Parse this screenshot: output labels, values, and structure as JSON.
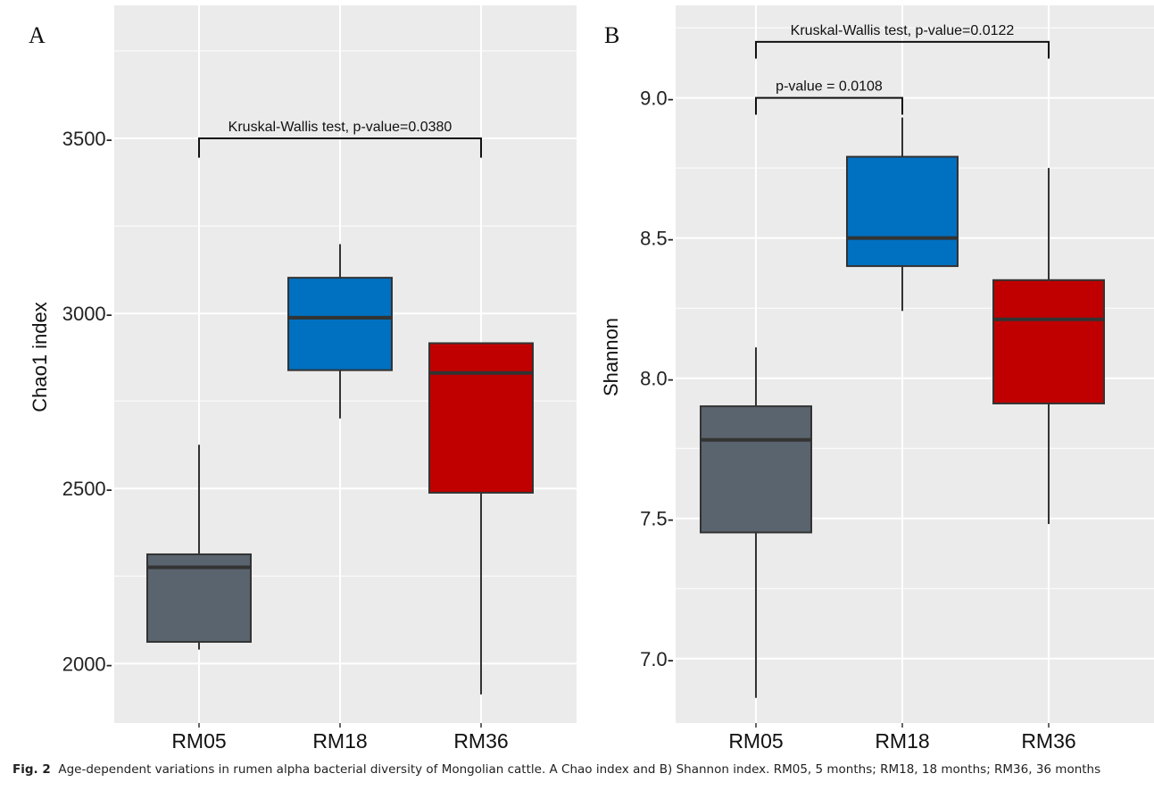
{
  "figure": {
    "caption_label": "Fig. 2",
    "caption_text": "Age-dependent variations in rumen alpha bacterial diversity of Mongolian cattle. A Chao index and B) Shannon index. RM05, 5 months; RM18, 18 months; RM36, 36 months"
  },
  "colors": {
    "panel_bg": "#ebebeb",
    "grid": "#ffffff",
    "RM05": "#5a646e",
    "RM18": "#0070c0",
    "RM36": "#c00000",
    "median": "#333333"
  },
  "chart_data": [
    {
      "type": "box",
      "panel_label": "A",
      "categories": [
        "RM05",
        "RM18",
        "RM36"
      ],
      "ylabel": "Chao1 index",
      "xlabel": "",
      "ylim": [
        1830,
        3880
      ],
      "yticks": [
        2000,
        2500,
        3000,
        3500
      ],
      "ytick_labels": [
        "2000-",
        "2500-",
        "3000-",
        "3500-"
      ],
      "grid": true,
      "series": [
        {
          "category": "RM05",
          "min": 2040,
          "q1": 2062,
          "median": 2275,
          "q3": 2312,
          "max": 2625
        },
        {
          "category": "RM18",
          "min": 2700,
          "q1": 2838,
          "median": 2988,
          "q3": 3102,
          "max": 3198
        },
        {
          "category": "RM36",
          "min": 1912,
          "q1": 2488,
          "median": 2830,
          "q3": 2915,
          "max": 2915
        }
      ],
      "annotations": [
        {
          "text": "Kruskal-Wallis test, p-value=0.0380",
          "from": "RM05",
          "to": "RM36",
          "y": 3500,
          "tick_bottom": 3445
        }
      ]
    },
    {
      "type": "box",
      "panel_label": "B",
      "categories": [
        "RM05",
        "RM18",
        "RM36"
      ],
      "ylabel": "Shannon",
      "xlabel": "",
      "ylim": [
        6.77,
        9.33
      ],
      "yticks": [
        7.0,
        7.5,
        8.0,
        8.5,
        9.0
      ],
      "ytick_labels": [
        "7.0-",
        "7.5-",
        "8.0-",
        "8.5-",
        "9.0-"
      ],
      "grid": true,
      "series": [
        {
          "category": "RM05",
          "min": 6.86,
          "q1": 7.45,
          "median": 7.78,
          "q3": 7.9,
          "max": 8.11
        },
        {
          "category": "RM18",
          "min": 8.24,
          "q1": 8.4,
          "median": 8.5,
          "q3": 8.79,
          "max": 8.93
        },
        {
          "category": "RM36",
          "min": 7.48,
          "q1": 7.91,
          "median": 8.21,
          "q3": 8.35,
          "max": 8.75
        }
      ],
      "annotations": [
        {
          "text": "Kruskal-Wallis test, p-value=0.0122",
          "from": "RM05",
          "to": "RM36",
          "y": 9.2,
          "tick_bottom": 9.14
        },
        {
          "text": "p-value = 0.0108",
          "from": "RM05",
          "to": "RM18",
          "y": 9.0,
          "tick_bottom": 8.94
        }
      ]
    }
  ]
}
